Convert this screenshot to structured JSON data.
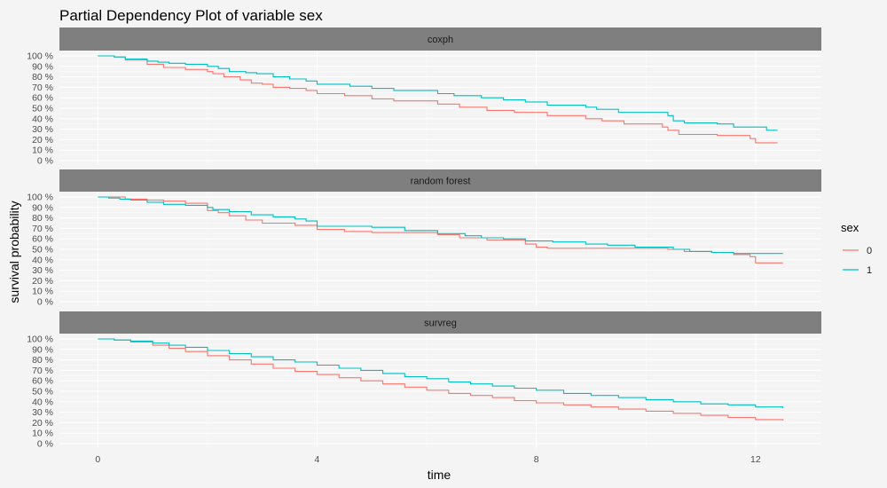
{
  "chart_data": {
    "type": "line",
    "step": true,
    "title": "Partial Dependency Plot of variable sex",
    "xlabel": "time",
    "ylabel": "survival probability",
    "xlim": [
      -0.7,
      13.2
    ],
    "ylim": [
      0,
      1
    ],
    "x_ticks": [
      0,
      4,
      8,
      12
    ],
    "x_tick_labels": [
      "0",
      "4",
      "8",
      "12"
    ],
    "y_ticks": [
      0,
      0.1,
      0.2,
      0.3,
      0.4,
      0.5,
      0.6,
      0.7,
      0.8,
      0.9,
      1.0
    ],
    "y_tick_labels": [
      "0 %",
      "10 %",
      "20 %",
      "30 %",
      "40 %",
      "50 %",
      "60 %",
      "70 %",
      "80 %",
      "90 %",
      "100 %"
    ],
    "grid": true,
    "legend": {
      "title": "sex",
      "position": "right",
      "entries": [
        {
          "label": "0",
          "color": "#F8766D"
        },
        {
          "label": "1",
          "color": "#00BFC4"
        }
      ]
    },
    "panels": [
      {
        "strip": "coxph",
        "series": [
          {
            "sex": "0",
            "color": "#F8766D",
            "x": [
              0,
              0.3,
              0.5,
              0.9,
              1.2,
              1.6,
              2.0,
              2.1,
              2.3,
              2.6,
              2.8,
              3.0,
              3.2,
              3.5,
              3.8,
              4.0,
              4.5,
              5.0,
              5.4,
              6.2,
              6.6,
              7.1,
              7.6,
              8.2,
              8.9,
              9.2,
              9.6,
              10.3,
              10.4,
              10.6,
              11.3,
              11.9,
              12.0,
              12.4
            ],
            "y": [
              1.0,
              0.99,
              0.96,
              0.92,
              0.89,
              0.87,
              0.85,
              0.83,
              0.8,
              0.77,
              0.74,
              0.73,
              0.7,
              0.69,
              0.67,
              0.64,
              0.62,
              0.59,
              0.57,
              0.54,
              0.51,
              0.48,
              0.46,
              0.43,
              0.4,
              0.38,
              0.35,
              0.32,
              0.29,
              0.25,
              0.24,
              0.21,
              0.17,
              0.17
            ]
          },
          {
            "sex": "1",
            "color": "#00BFC4",
            "x": [
              0,
              0.2,
              0.3,
              0.5,
              0.9,
              1.1,
              1.3,
              1.6,
              2.0,
              2.2,
              2.4,
              2.7,
              2.9,
              3.2,
              3.5,
              3.8,
              4.0,
              4.6,
              5.0,
              5.4,
              6.2,
              6.5,
              7.0,
              7.4,
              7.8,
              8.2,
              8.9,
              9.1,
              9.5,
              10.4,
              10.5,
              10.7,
              11.3,
              11.6,
              11.8,
              12.2,
              12.4
            ],
            "y": [
              1.0,
              1.0,
              0.99,
              0.97,
              0.95,
              0.94,
              0.93,
              0.92,
              0.9,
              0.88,
              0.85,
              0.84,
              0.83,
              0.8,
              0.78,
              0.76,
              0.73,
              0.71,
              0.69,
              0.67,
              0.64,
              0.62,
              0.6,
              0.58,
              0.56,
              0.53,
              0.51,
              0.49,
              0.46,
              0.43,
              0.38,
              0.36,
              0.35,
              0.32,
              0.32,
              0.29,
              0.29
            ]
          }
        ]
      },
      {
        "strip": "random forest",
        "series": [
          {
            "sex": "0",
            "color": "#F8766D",
            "x": [
              0,
              0.3,
              0.5,
              0.9,
              1.2,
              1.6,
              2.0,
              2.2,
              2.4,
              2.7,
              3.0,
              3.2,
              3.6,
              4.0,
              4.5,
              5.0,
              5.4,
              6.2,
              6.6,
              7.1,
              7.6,
              7.8,
              8.0,
              8.2,
              9.0,
              10.0,
              10.4,
              10.7,
              11.2,
              11.6,
              11.9,
              12.0,
              12.5
            ],
            "y": [
              1.0,
              1.0,
              0.98,
              0.97,
              0.96,
              0.94,
              0.87,
              0.85,
              0.82,
              0.78,
              0.75,
              0.75,
              0.73,
              0.69,
              0.67,
              0.66,
              0.66,
              0.64,
              0.61,
              0.59,
              0.59,
              0.55,
              0.52,
              0.51,
              0.51,
              0.51,
              0.5,
              0.48,
              0.47,
              0.45,
              0.43,
              0.37,
              0.37
            ]
          },
          {
            "sex": "1",
            "color": "#00BFC4",
            "x": [
              0,
              0.2,
              0.4,
              0.6,
              0.9,
              1.2,
              1.6,
              2.0,
              2.1,
              2.4,
              2.8,
              3.2,
              3.6,
              3.8,
              4.0,
              4.5,
              5.0,
              5.6,
              6.2,
              6.7,
              7.0,
              7.4,
              7.8,
              8.3,
              8.9,
              9.3,
              9.8,
              10.5,
              10.8,
              11.2,
              11.6,
              12.0,
              12.5
            ],
            "y": [
              1.0,
              0.99,
              0.98,
              0.97,
              0.95,
              0.93,
              0.92,
              0.9,
              0.88,
              0.86,
              0.83,
              0.81,
              0.79,
              0.77,
              0.72,
              0.72,
              0.71,
              0.68,
              0.65,
              0.63,
              0.61,
              0.6,
              0.58,
              0.57,
              0.55,
              0.54,
              0.52,
              0.5,
              0.48,
              0.47,
              0.46,
              0.46,
              0.46
            ]
          }
        ]
      },
      {
        "strip": "survreg",
        "series": [
          {
            "sex": "0",
            "color": "#F8766D",
            "x": [
              0,
              0.3,
              0.6,
              1.0,
              1.3,
              1.6,
              2.0,
              2.4,
              2.8,
              3.2,
              3.6,
              4.0,
              4.4,
              4.8,
              5.2,
              5.6,
              6.0,
              6.4,
              6.8,
              7.2,
              7.6,
              8.0,
              8.5,
              9.0,
              9.5,
              10.0,
              10.5,
              11.0,
              11.5,
              12.0,
              12.5
            ],
            "y": [
              1.0,
              0.99,
              0.97,
              0.94,
              0.91,
              0.88,
              0.84,
              0.8,
              0.76,
              0.72,
              0.69,
              0.66,
              0.63,
              0.6,
              0.57,
              0.54,
              0.51,
              0.48,
              0.46,
              0.44,
              0.41,
              0.39,
              0.37,
              0.35,
              0.33,
              0.31,
              0.29,
              0.27,
              0.25,
              0.23,
              0.22
            ]
          },
          {
            "sex": "1",
            "color": "#00BFC4",
            "x": [
              0,
              0.3,
              0.6,
              1.0,
              1.3,
              1.6,
              2.0,
              2.4,
              2.8,
              3.2,
              3.6,
              4.0,
              4.4,
              4.8,
              5.2,
              5.6,
              6.0,
              6.4,
              6.8,
              7.2,
              7.6,
              8.0,
              8.5,
              9.0,
              9.5,
              10.0,
              10.5,
              11.0,
              11.5,
              12.0,
              12.5
            ],
            "y": [
              1.0,
              0.99,
              0.98,
              0.96,
              0.94,
              0.92,
              0.89,
              0.86,
              0.83,
              0.8,
              0.78,
              0.75,
              0.72,
              0.7,
              0.67,
              0.64,
              0.62,
              0.59,
              0.57,
              0.55,
              0.53,
              0.51,
              0.48,
              0.46,
              0.44,
              0.42,
              0.4,
              0.38,
              0.37,
              0.35,
              0.34
            ]
          }
        ]
      }
    ]
  }
}
